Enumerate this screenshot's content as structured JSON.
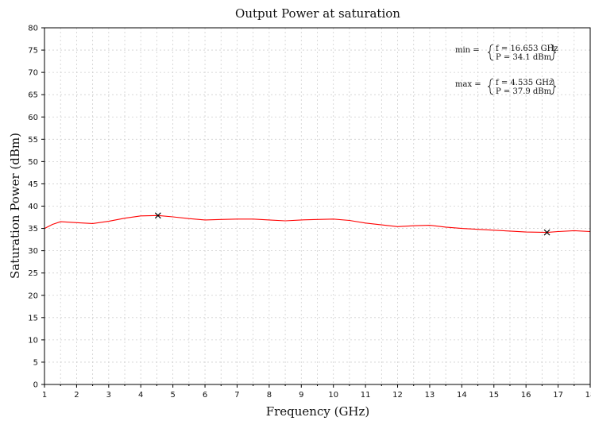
{
  "chart_data": {
    "type": "line",
    "title": "Output Power at saturation",
    "xlabel": "Frequency (GHz)",
    "ylabel": "Saturation Power (dBm)",
    "xlim": [
      1,
      18
    ],
    "ylim": [
      0,
      80
    ],
    "xticks": [
      1,
      1.5,
      2,
      2.5,
      3,
      3.5,
      4,
      4.5,
      5,
      5.5,
      6,
      6.5,
      7,
      7.5,
      8,
      8.5,
      9,
      9.5,
      10,
      10.5,
      11,
      11.5,
      12,
      12.5,
      13,
      13.5,
      14,
      14.5,
      15,
      15.5,
      16,
      16.5,
      17,
      17.5,
      18
    ],
    "xtick_labels": [
      "1",
      "",
      "2",
      "",
      "3",
      "",
      "4",
      "",
      "5",
      "",
      "6",
      "",
      "7",
      "",
      "8",
      "",
      "9",
      "",
      "10",
      "",
      "11",
      "",
      "12",
      "",
      "13",
      "",
      "14",
      "",
      "15",
      "",
      "16",
      "",
      "17",
      "",
      "18"
    ],
    "yticks": [
      0,
      5,
      10,
      15,
      20,
      25,
      30,
      35,
      40,
      45,
      50,
      55,
      60,
      65,
      70,
      75,
      80
    ],
    "grid": true,
    "series": [
      {
        "color": "#ff0000",
        "x": [
          1.0,
          1.25,
          1.5,
          2.0,
          2.5,
          3.0,
          3.5,
          4.0,
          4.535,
          5.0,
          5.5,
          6.0,
          6.5,
          7.0,
          7.5,
          8.0,
          8.5,
          9.0,
          9.5,
          10.0,
          10.5,
          11.0,
          11.5,
          12.0,
          12.5,
          13.0,
          13.5,
          14.0,
          14.5,
          15.0,
          15.5,
          16.0,
          16.653,
          17.0,
          17.5,
          18.0
        ],
        "y": [
          35.0,
          35.9,
          36.5,
          36.3,
          36.1,
          36.6,
          37.3,
          37.8,
          37.9,
          37.6,
          37.2,
          36.9,
          37.0,
          37.1,
          37.1,
          36.9,
          36.7,
          36.9,
          37.0,
          37.1,
          36.8,
          36.2,
          35.8,
          35.4,
          35.6,
          35.7,
          35.3,
          35.0,
          34.8,
          34.6,
          34.4,
          34.2,
          34.1,
          34.3,
          34.5,
          34.3
        ]
      }
    ],
    "markers": [
      {
        "name": "max",
        "x": 4.535,
        "y": 37.9,
        "symbol": "x"
      },
      {
        "name": "min",
        "x": 16.653,
        "y": 34.1,
        "symbol": "x"
      }
    ],
    "annotations": [
      {
        "label": "min =",
        "line1": "f = 16.653 GHz",
        "line2": "P = 34.1 dBm"
      },
      {
        "label": "max =",
        "line1": "f = 4.535 GHz",
        "line2": "P = 37.9 dBm"
      }
    ]
  }
}
